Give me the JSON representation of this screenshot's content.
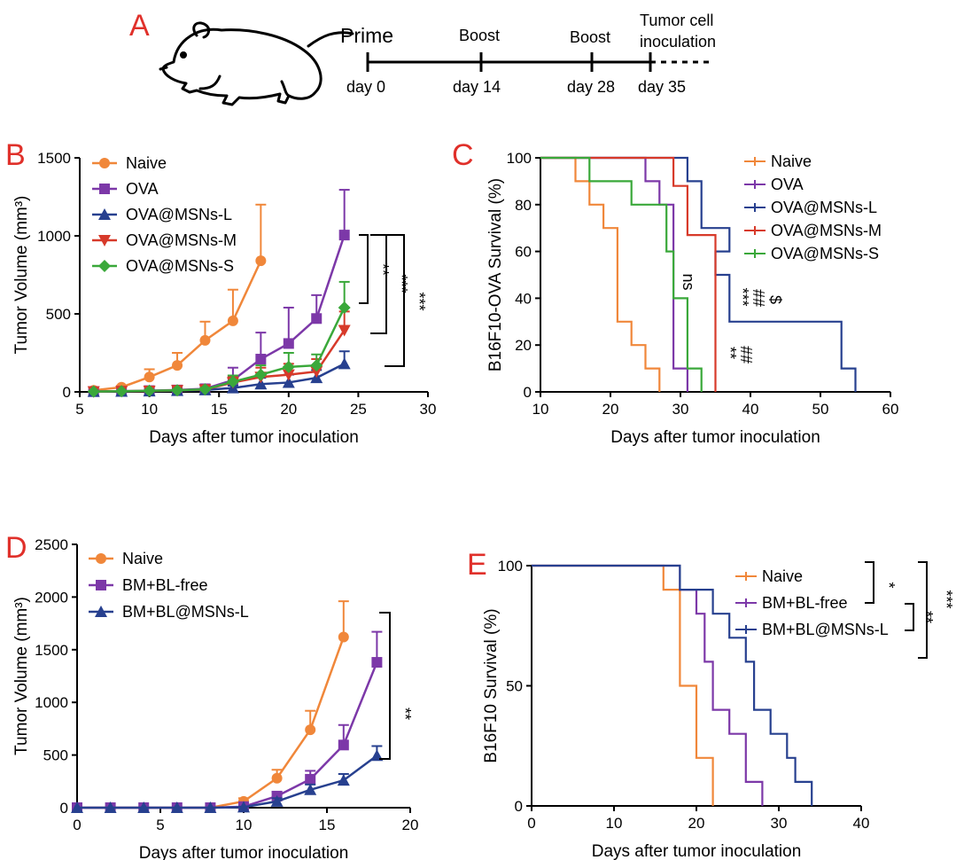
{
  "colors": {
    "orange": "#f0873a",
    "purple": "#7c38a8",
    "navy": "#27408f",
    "red": "#d73a2a",
    "green": "#3aa83a",
    "label": "#e0302a"
  },
  "schedule": {
    "letter": "A",
    "events": [
      {
        "top": "Prime",
        "bottom": "day 0"
      },
      {
        "top": "Boost",
        "bottom": "day 14"
      },
      {
        "top": "Boost",
        "bottom": "day 28"
      },
      {
        "top": "Tumor cell inoculation",
        "bottom": "day 35"
      }
    ],
    "top_lines": [
      "Prime",
      "Boost",
      "Boost",
      "Tumor cell",
      "inoculation"
    ]
  },
  "chart_data": [
    {
      "letter": "B",
      "type": "line",
      "xlabel": "Days after tumor inoculation",
      "ylabel": "Tumor Volume (mm³)",
      "xlim": [
        5,
        30
      ],
      "ylim": [
        0,
        1500
      ],
      "xticks": [
        5,
        10,
        15,
        20,
        25,
        30
      ],
      "yticks": [
        0,
        500,
        1000,
        1500
      ],
      "legend": "top-left",
      "series": [
        {
          "name": "Naive",
          "color": "#f0873a",
          "marker": "circle",
          "x": [
            6,
            8,
            10,
            12,
            14,
            16,
            18
          ],
          "y": [
            10,
            30,
            95,
            170,
            330,
            455,
            840
          ],
          "err": [
            5,
            10,
            50,
            80,
            120,
            200,
            360
          ]
        },
        {
          "name": "OVA",
          "color": "#7c38a8",
          "marker": "square",
          "x": [
            6,
            8,
            10,
            12,
            14,
            16,
            18,
            20,
            22,
            24
          ],
          "y": [
            2,
            4,
            8,
            12,
            20,
            75,
            210,
            310,
            470,
            1005
          ],
          "err": [
            2,
            3,
            5,
            8,
            15,
            80,
            170,
            230,
            150,
            290
          ]
        },
        {
          "name": "OVA@MSNs-L",
          "color": "#27408f",
          "marker": "triangle-up",
          "x": [
            6,
            8,
            10,
            12,
            14,
            16,
            18,
            20,
            22,
            24
          ],
          "y": [
            2,
            3,
            5,
            8,
            12,
            25,
            50,
            60,
            90,
            180
          ],
          "err": [
            2,
            2,
            3,
            5,
            8,
            15,
            40,
            50,
            50,
            80
          ]
        },
        {
          "name": "OVA@MSNs-M",
          "color": "#d73a2a",
          "marker": "triangle-down",
          "x": [
            6,
            8,
            10,
            12,
            14,
            16,
            18,
            20,
            22,
            24
          ],
          "y": [
            2,
            4,
            6,
            10,
            15,
            60,
            95,
            110,
            130,
            395
          ],
          "err": [
            2,
            3,
            4,
            6,
            10,
            40,
            60,
            70,
            80,
            120
          ]
        },
        {
          "name": "OVA@MSNs-S",
          "color": "#3aa83a",
          "marker": "diamond",
          "x": [
            6,
            8,
            10,
            12,
            14,
            16,
            18,
            20,
            22,
            24
          ],
          "y": [
            2,
            4,
            7,
            10,
            16,
            65,
            110,
            160,
            170,
            540
          ],
          "err": [
            2,
            3,
            4,
            6,
            10,
            40,
            60,
            90,
            70,
            165
          ]
        }
      ],
      "annotations": [
        "**",
        "***",
        "***"
      ]
    },
    {
      "letter": "C",
      "type": "line",
      "xlabel": "Days after tumor inoculation",
      "ylabel": "B16F10-OVA Survival (%)",
      "xlim": [
        10,
        60
      ],
      "ylim": [
        0,
        100
      ],
      "xticks": [
        10,
        20,
        30,
        40,
        50,
        60
      ],
      "yticks": [
        0,
        20,
        40,
        60,
        80,
        100
      ],
      "legend": "top-right",
      "series": [
        {
          "name": "Naive",
          "color": "#f0873a",
          "steps": [
            [
              10,
              100
            ],
            [
              15,
              90
            ],
            [
              17,
              80
            ],
            [
              19,
              70
            ],
            [
              21,
              30
            ],
            [
              23,
              20
            ],
            [
              25,
              10
            ],
            [
              27,
              0
            ]
          ]
        },
        {
          "name": "OVA",
          "color": "#7c38a8",
          "steps": [
            [
              10,
              100
            ],
            [
              25,
              90
            ],
            [
              27,
              80
            ],
            [
              29,
              10
            ],
            [
              31,
              0
            ]
          ]
        },
        {
          "name": "OVA@MSNs-L",
          "color": "#27408f",
          "steps": [
            [
              10,
              100
            ],
            [
              31,
              90
            ],
            [
              33,
              70
            ],
            [
              37,
              60
            ],
            [
              35,
              50
            ],
            [
              37,
              30
            ],
            [
              53,
              10
            ],
            [
              55,
              0
            ]
          ]
        },
        {
          "name": "OVA@MSNs-M",
          "color": "#d73a2a",
          "steps": [
            [
              10,
              100
            ],
            [
              29,
              88
            ],
            [
              31,
              67
            ],
            [
              35,
              33
            ],
            [
              35,
              0
            ]
          ]
        },
        {
          "name": "OVA@MSNs-S",
          "color": "#3aa83a",
          "steps": [
            [
              10,
              100
            ],
            [
              17,
              90
            ],
            [
              23,
              80
            ],
            [
              28,
              60
            ],
            [
              29,
              40
            ],
            [
              31,
              10
            ],
            [
              33,
              0
            ]
          ]
        }
      ],
      "annotations": [
        "ns",
        "***",
        "##",
        "$",
        "**",
        "##"
      ]
    },
    {
      "letter": "D",
      "type": "line",
      "xlabel": "Days after tumor inoculation",
      "ylabel": "Tumor Volume (mm³)",
      "xlim": [
        0,
        20
      ],
      "ylim": [
        0,
        2500
      ],
      "xticks": [
        0,
        5,
        10,
        15,
        20
      ],
      "yticks": [
        0,
        500,
        1000,
        1500,
        2000,
        2500
      ],
      "legend": "top-left",
      "series": [
        {
          "name": "Naive",
          "color": "#f0873a",
          "marker": "circle",
          "x": [
            0,
            2,
            4,
            6,
            8,
            10,
            12,
            14,
            16
          ],
          "y": [
            0,
            0,
            0,
            0,
            0,
            60,
            280,
            740,
            1620
          ],
          "err": [
            0,
            0,
            0,
            0,
            0,
            30,
            80,
            180,
            340
          ]
        },
        {
          "name": "BM+BL-free",
          "color": "#7c38a8",
          "marker": "square",
          "x": [
            0,
            2,
            4,
            6,
            8,
            10,
            12,
            14,
            16,
            18
          ],
          "y": [
            0,
            0,
            0,
            0,
            0,
            10,
            110,
            270,
            595,
            1380
          ],
          "err": [
            0,
            0,
            0,
            0,
            0,
            10,
            40,
            80,
            190,
            290
          ]
        },
        {
          "name": "BM+BL@MSNs-L",
          "color": "#27408f",
          "marker": "triangle-up",
          "x": [
            0,
            2,
            4,
            6,
            8,
            10,
            12,
            14,
            16,
            18
          ],
          "y": [
            0,
            0,
            0,
            0,
            0,
            5,
            60,
            170,
            260,
            495
          ],
          "err": [
            0,
            0,
            0,
            0,
            0,
            5,
            30,
            50,
            60,
            90
          ]
        }
      ],
      "annotations": [
        "**"
      ]
    },
    {
      "letter": "E",
      "type": "line",
      "xlabel": "Days after tumor inoculation",
      "ylabel": "B16F10 Survival (%)",
      "xlim": [
        0,
        40
      ],
      "ylim": [
        0,
        100
      ],
      "xticks": [
        0,
        10,
        20,
        30,
        40
      ],
      "yticks": [
        0,
        50,
        100
      ],
      "legend": "top-right",
      "series": [
        {
          "name": "Naive",
          "color": "#f0873a",
          "steps": [
            [
              0,
              100
            ],
            [
              16,
              90
            ],
            [
              18,
              50
            ],
            [
              20,
              20
            ],
            [
              22,
              0
            ]
          ]
        },
        {
          "name": "BM+BL-free",
          "color": "#7c38a8",
          "steps": [
            [
              0,
              100
            ],
            [
              18,
              90
            ],
            [
              20,
              80
            ],
            [
              21,
              60
            ],
            [
              22,
              40
            ],
            [
              24,
              30
            ],
            [
              26,
              10
            ],
            [
              28,
              0
            ]
          ]
        },
        {
          "name": "BM+BL@MSNs-L",
          "color": "#27408f",
          "steps": [
            [
              0,
              100
            ],
            [
              18,
              90
            ],
            [
              22,
              80
            ],
            [
              24,
              70
            ],
            [
              26,
              60
            ],
            [
              27,
              40
            ],
            [
              29,
              30
            ],
            [
              31,
              20
            ],
            [
              32,
              10
            ],
            [
              34,
              0
            ]
          ]
        }
      ],
      "annotations": [
        "*",
        "**",
        "***"
      ]
    }
  ]
}
